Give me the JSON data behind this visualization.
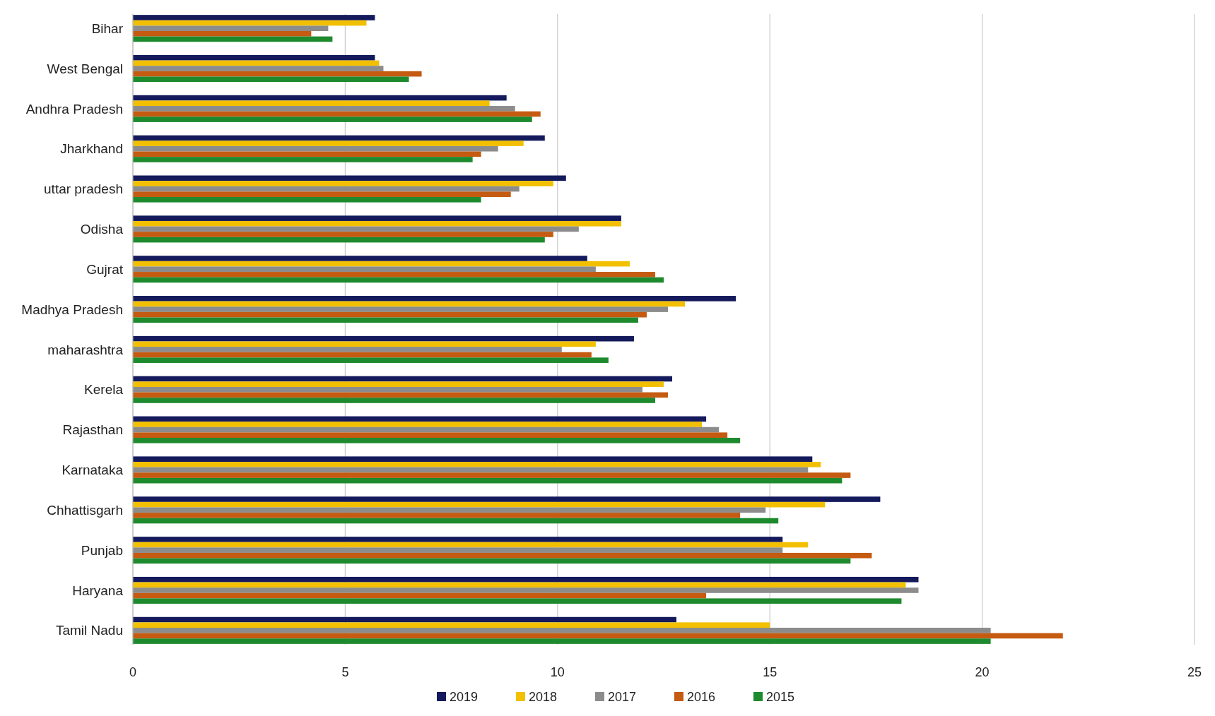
{
  "chart_data": {
    "type": "bar",
    "orientation": "horizontal",
    "categories": [
      "Bihar",
      "West Bengal",
      "Andhra Pradesh",
      "Jharkhand",
      "uttar pradesh",
      "Odisha",
      "Gujrat",
      "Madhya Pradesh",
      "maharashtra",
      "Kerela",
      "Rajasthan",
      "Karnataka",
      "Chhattisgarh",
      "Punjab",
      "Haryana",
      "Tamil Nadu"
    ],
    "series": [
      {
        "name": "2019",
        "color": "#141a5c",
        "values": [
          5.7,
          5.7,
          8.8,
          9.7,
          10.2,
          11.5,
          10.7,
          14.2,
          11.8,
          12.7,
          13.5,
          16.0,
          17.6,
          15.3,
          18.5,
          12.8
        ]
      },
      {
        "name": "2018",
        "color": "#f2c000",
        "values": [
          5.5,
          5.8,
          8.4,
          9.2,
          9.9,
          11.5,
          11.7,
          13.0,
          10.9,
          12.5,
          13.4,
          16.2,
          16.3,
          15.9,
          18.2,
          15.0
        ]
      },
      {
        "name": "2017",
        "color": "#8c8c8c",
        "values": [
          4.6,
          5.9,
          9.0,
          8.6,
          9.1,
          10.5,
          10.9,
          12.6,
          10.1,
          12.0,
          13.8,
          15.9,
          14.9,
          15.3,
          18.5,
          20.2
        ]
      },
      {
        "name": "2016",
        "color": "#c55a11",
        "values": [
          4.2,
          6.8,
          9.6,
          8.2,
          8.9,
          9.9,
          12.3,
          12.1,
          10.8,
          12.6,
          14.0,
          16.9,
          14.3,
          17.4,
          13.5,
          21.9
        ]
      },
      {
        "name": "2015",
        "color": "#1e8a2e",
        "values": [
          4.7,
          6.5,
          9.4,
          8.0,
          8.2,
          9.7,
          12.5,
          11.9,
          11.2,
          12.3,
          14.3,
          16.7,
          15.2,
          16.9,
          18.1,
          20.2
        ]
      }
    ],
    "xlim": [
      0,
      25
    ],
    "xticks": [
      0,
      5,
      10,
      15,
      20,
      25
    ],
    "grid": "x",
    "legend": "bottom"
  }
}
